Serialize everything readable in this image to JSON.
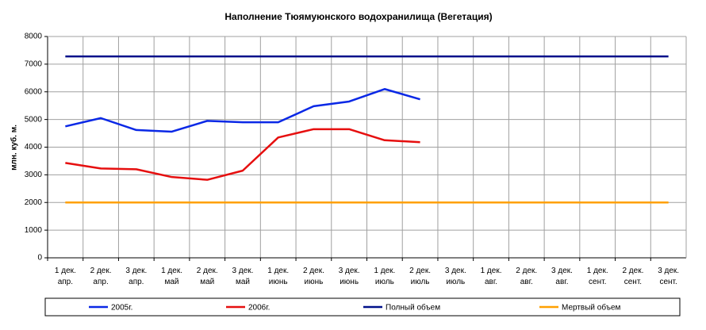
{
  "chart_data": {
    "type": "line",
    "title": "Наполнение Тюямуюнского водохранилища (Вегетация)",
    "y_label": "млн. куб. м.",
    "categories": [
      "1 дек.\nапр.",
      "2 дек.\nапр.",
      "3 дек.\nапр.",
      "1 дек.\nмай",
      "2 дек.\nмай",
      "3 дек.\nмай",
      "1 дек.\nиюнь",
      "2 дек.\nиюнь",
      "3 дек.\nиюнь",
      "1 дек.\nиюль",
      "2 дек.\nиюль",
      "3 дек.\nиюль",
      "1 дек.\nавг.",
      "2 дек.\nавг.",
      "3 дек.\nавг.",
      "1 дек.\nсент.",
      "2 дек.\nсент.",
      "3 дек.\nсент."
    ],
    "series": [
      {
        "name": "2005г.",
        "color": "#0a28e6",
        "values": [
          4750,
          5050,
          4620,
          4560,
          4950,
          4900,
          4900,
          5480,
          5650,
          6100,
          5730,
          null,
          null,
          null,
          null,
          null,
          null,
          null
        ]
      },
      {
        "name": "2006г.",
        "color": "#e60f0f",
        "values": [
          3430,
          3230,
          3200,
          2920,
          2820,
          3150,
          4350,
          4650,
          4650,
          4250,
          4180,
          null,
          null,
          null,
          null,
          null,
          null,
          null
        ]
      },
      {
        "name": "Полный объем",
        "color": "#00108a",
        "values": [
          7280,
          7280,
          7280,
          7280,
          7280,
          7280,
          7280,
          7280,
          7280,
          7280,
          7280,
          7280,
          7280,
          7280,
          7280,
          7280,
          7280,
          7280
        ]
      },
      {
        "name": "Мертвый объем",
        "color": "#ffa000",
        "values": [
          2000,
          2000,
          2000,
          2000,
          2000,
          2000,
          2000,
          2000,
          2000,
          2000,
          2000,
          2000,
          2000,
          2000,
          2000,
          2000,
          2000,
          2000
        ]
      }
    ],
    "ylim": [
      0,
      8000
    ],
    "yticks": [
      0,
      1000,
      2000,
      3000,
      4000,
      5000,
      6000,
      7000,
      8000
    ],
    "grid": true
  }
}
